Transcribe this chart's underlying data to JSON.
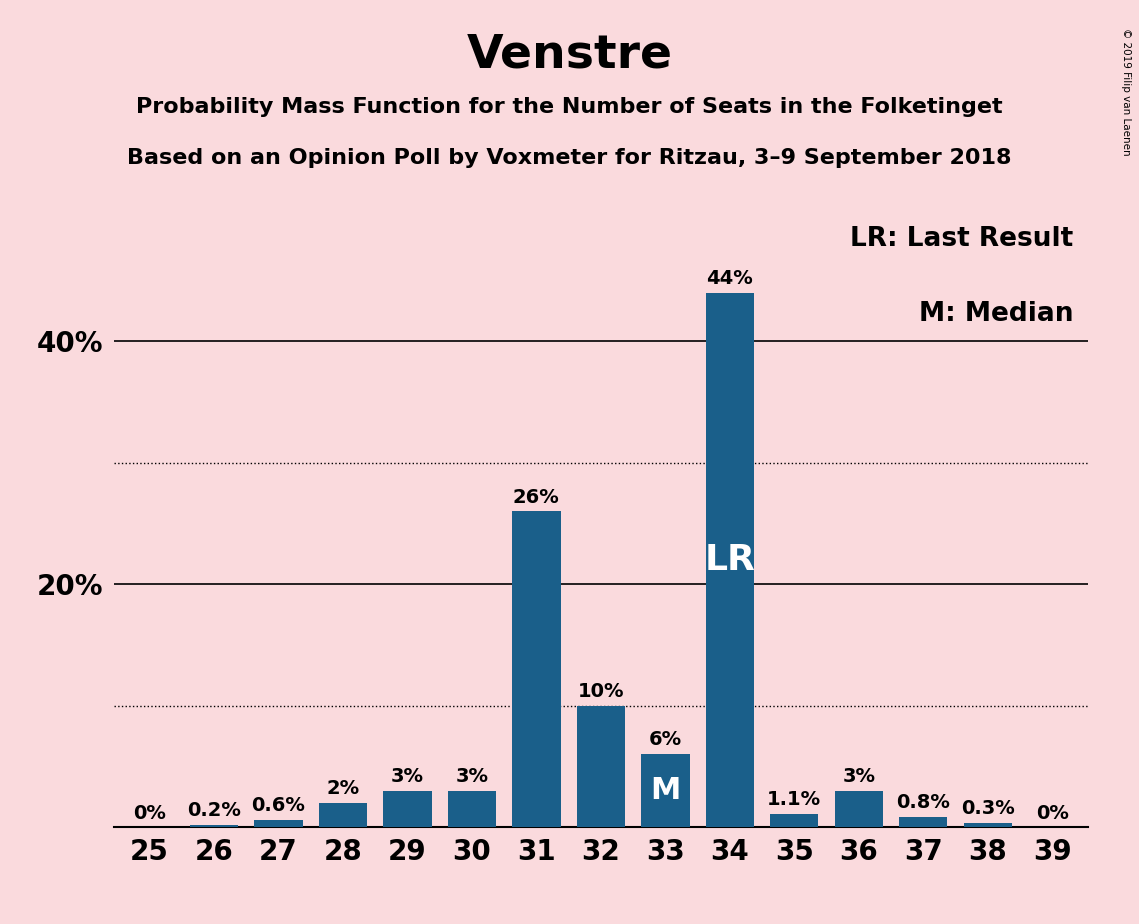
{
  "title": "Venstre",
  "subtitle1": "Probability Mass Function for the Number of Seats in the Folketinget",
  "subtitle2": "Based on an Opinion Poll by Voxmeter for Ritzau, 3–9 September 2018",
  "copyright": "© 2019 Filip van Laenen",
  "categories": [
    25,
    26,
    27,
    28,
    29,
    30,
    31,
    32,
    33,
    34,
    35,
    36,
    37,
    38,
    39
  ],
  "values": [
    0.0,
    0.2,
    0.6,
    2.0,
    3.0,
    3.0,
    26.0,
    10.0,
    6.0,
    44.0,
    1.1,
    3.0,
    0.8,
    0.3,
    0.0
  ],
  "labels": [
    "0%",
    "0.2%",
    "0.6%",
    "2%",
    "3%",
    "3%",
    "26%",
    "10%",
    "6%",
    "44%",
    "1.1%",
    "3%",
    "0.8%",
    "0.3%",
    "0%"
  ],
  "bar_color": "#1a5f8a",
  "background_color": "#fadadd",
  "lr_seat": 34,
  "median_seat": 33,
  "lr_label": "LR",
  "median_label": "M",
  "legend_lr": "LR: Last Result",
  "legend_m": "M: Median",
  "solid_gridlines_pct": [
    20,
    40
  ],
  "dotted_gridlines_pct": [
    10,
    30
  ],
  "title_fontsize": 34,
  "subtitle_fontsize": 16,
  "tick_fontsize": 20,
  "legend_fontsize": 19,
  "bar_label_fontsize": 14,
  "lr_inside_fontsize": 26,
  "m_inside_fontsize": 22
}
